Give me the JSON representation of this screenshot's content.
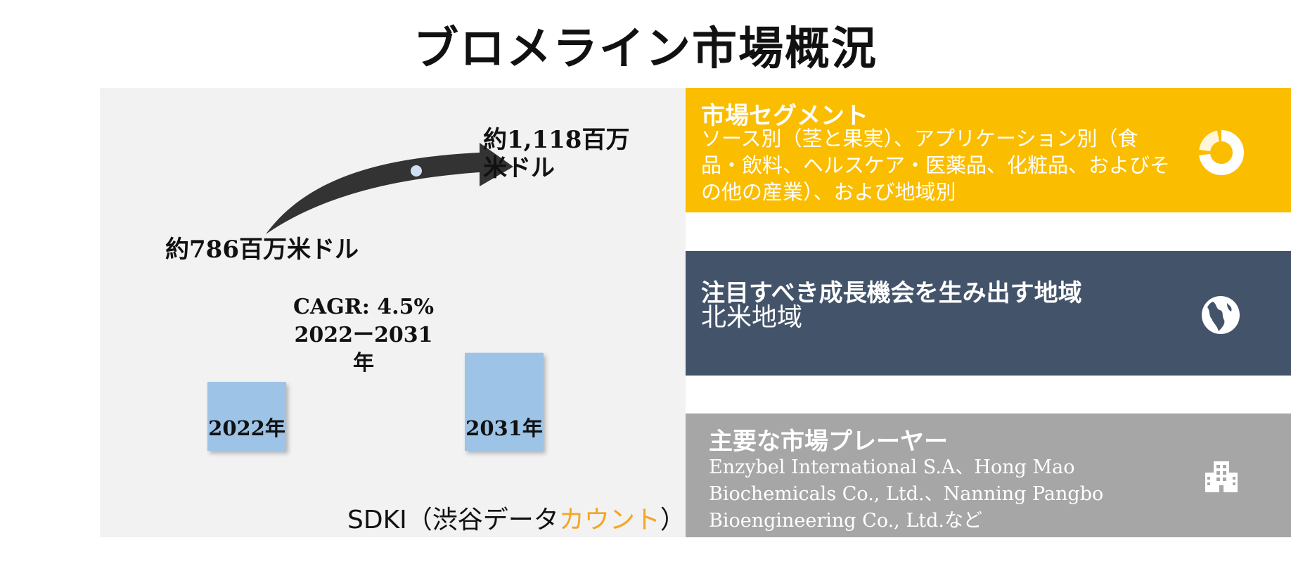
{
  "title": "ブロメライン市場概況",
  "chart_data": {
    "type": "bar",
    "categories": [
      "2022年",
      "2031年"
    ],
    "values": [
      786,
      1118
    ],
    "value_labels": [
      "約786百万米ドル",
      "約1,118百万米ドル"
    ],
    "bar_color": "#9dc3e6",
    "annotation": {
      "cagr": "CAGR: 4.5%",
      "period": "2022ー2031年"
    },
    "arrow_color": "#333333"
  },
  "source": {
    "prefix": "SDKI（渋谷データ",
    "accent": "カウント",
    "suffix": "）",
    "accent_color": "#f4a623"
  },
  "segments": [
    {
      "title": "市場セグメント",
      "body": "ソース別（茎と果実）、アプリケーション別（食品・飲料、ヘルスケア・医薬品、化粧品、およびその他の産業）、および地域別",
      "color": "#fbbd00",
      "icon": "donut-chart-icon"
    },
    {
      "title": "注目すべき成長機会を生み出す地域",
      "body": "北米地域",
      "color": "#43536a",
      "icon": "globe-icon"
    },
    {
      "title": "主要な市場プレーヤー",
      "body": "Enzybel International S.A、Hong Mao Biochemicals Co., Ltd.、Nanning Pangbo Bioengineering Co., Ltd.など",
      "color": "#a6a6a6",
      "icon": "building-icon"
    }
  ]
}
